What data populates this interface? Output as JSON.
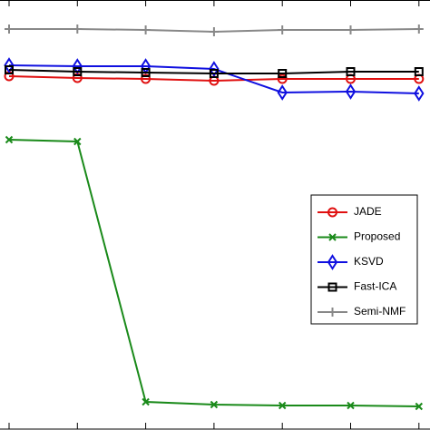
{
  "chart_data": {
    "type": "line",
    "categories": [
      null,
      null,
      null,
      null,
      null,
      null,
      null
    ],
    "ylim": [
      0,
      474
    ],
    "legend": "right",
    "series": [
      {
        "name": "JADE",
        "color": "#e01010",
        "marker": "circle",
        "values": [
          390,
          388,
          387,
          385,
          387,
          387,
          387
        ]
      },
      {
        "name": "Proposed",
        "color": "#1a8a1a",
        "marker": "x",
        "values": [
          320,
          318,
          31,
          28,
          27,
          27,
          26
        ]
      },
      {
        "name": "KSVD",
        "color": "#1010e0",
        "marker": "diamond",
        "values": [
          402,
          401,
          401,
          398,
          372,
          373,
          371
        ]
      },
      {
        "name": "Fast-ICA",
        "color": "#000000",
        "marker": "square",
        "values": [
          397,
          395,
          394,
          393,
          393,
          395,
          395
        ]
      },
      {
        "name": "Semi-NMF",
        "color": "#888888",
        "marker": "plus",
        "values": [
          442,
          442,
          441,
          439,
          441,
          441,
          442
        ]
      }
    ]
  }
}
